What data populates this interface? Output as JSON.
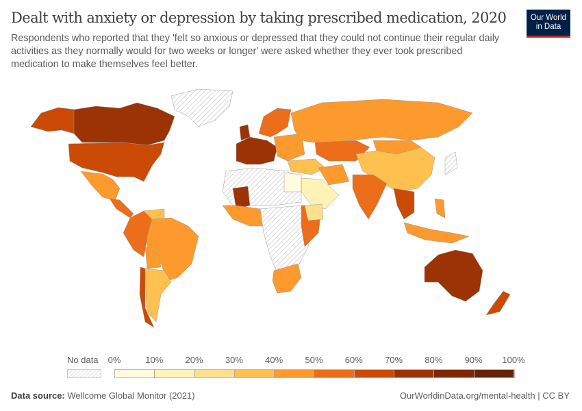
{
  "header": {
    "title": "Dealt with anxiety or depression by taking prescribed medication, 2020",
    "subtitle": "Respondents who reported that they 'felt so anxious or depressed that they could not continue their regular daily activities as they normally would for two weeks or longer' were asked whether they ever took prescribed medication to make themselves feel better.",
    "logo": "Our World in Data"
  },
  "legend": {
    "no_data": "No data",
    "ticks": [
      "0%",
      "10%",
      "20%",
      "30%",
      "40%",
      "50%",
      "60%",
      "70%",
      "80%",
      "90%",
      "100%"
    ],
    "colors": [
      "#fffbe0",
      "#fff3b8",
      "#fde08e",
      "#fec150",
      "#fd9a2e",
      "#ec6d1a",
      "#cb4a05",
      "#9c3305",
      "#7f2704",
      "#67230a"
    ]
  },
  "footer": {
    "source_label": "Data source:",
    "source": "Wellcome Global Monitor (2021)",
    "url": "OurWorldinData.org/mental-health | CC BY"
  }
}
